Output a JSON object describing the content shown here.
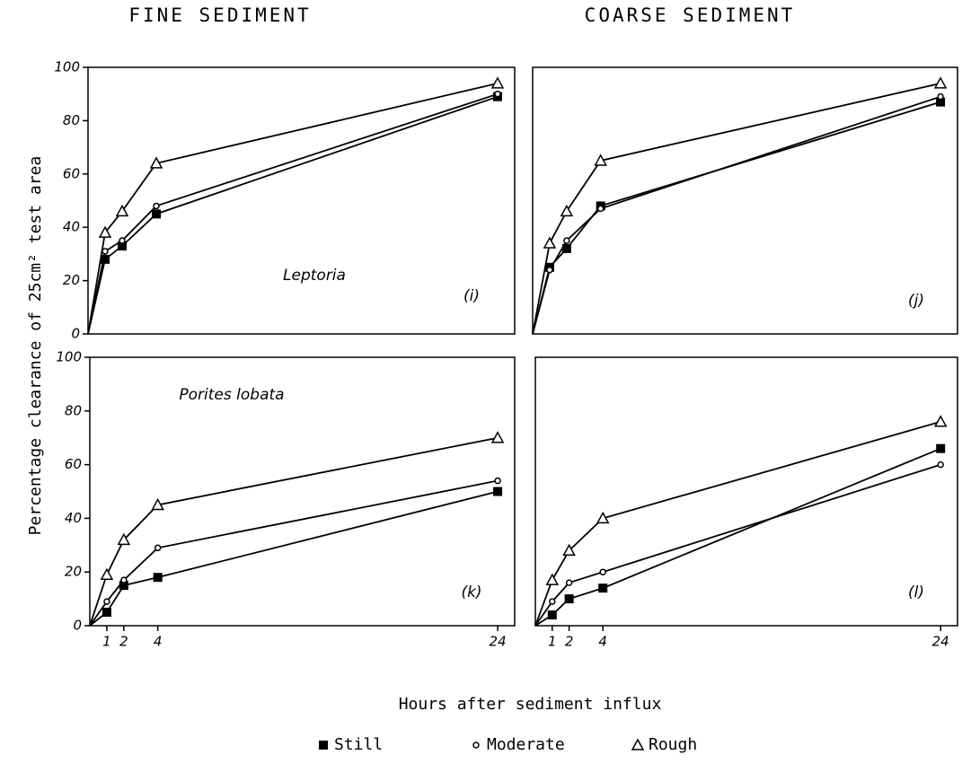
{
  "figure": {
    "column_titles": [
      "FINE SEDIMENT",
      "COARSE SEDIMENT"
    ],
    "ylabel": "Percentage clearance of 25cm² test area",
    "xlabel": "Hours after sediment influx"
  },
  "chart_data": [
    {
      "type": "line",
      "x": [
        0,
        1,
        2,
        4,
        24
      ],
      "xlim": [
        0,
        25
      ],
      "ylim": [
        0,
        100
      ],
      "yticks": [
        0,
        20,
        40,
        60,
        80,
        100
      ],
      "annotations": [
        "Leptoria",
        "(i)"
      ],
      "series": [
        {
          "name": "Still",
          "color": "#000000",
          "marker": "square",
          "values": [
            0,
            28,
            33,
            45,
            89
          ]
        },
        {
          "name": "Moderate",
          "color": "#000000",
          "marker": "circle",
          "values": [
            0,
            31,
            35,
            48,
            90
          ]
        },
        {
          "name": "Rough",
          "color": "#000000",
          "marker": "triangle",
          "values": [
            0,
            38,
            46,
            64,
            94
          ]
        }
      ]
    },
    {
      "type": "line",
      "x": [
        0,
        1,
        2,
        4,
        24
      ],
      "xlim": [
        0,
        25
      ],
      "ylim": [
        0,
        100
      ],
      "annotations": [
        "(j)"
      ],
      "series": [
        {
          "name": "Still",
          "color": "#000000",
          "marker": "square",
          "values": [
            0,
            25,
            32,
            48,
            87
          ]
        },
        {
          "name": "Moderate",
          "color": "#000000",
          "marker": "circle",
          "values": [
            0,
            24,
            35,
            47,
            89
          ]
        },
        {
          "name": "Rough",
          "color": "#000000",
          "marker": "triangle",
          "values": [
            0,
            34,
            46,
            65,
            94
          ]
        }
      ]
    },
    {
      "type": "line",
      "x": [
        0,
        1,
        2,
        4,
        24
      ],
      "xlim": [
        0,
        25
      ],
      "ylim": [
        0,
        100
      ],
      "yticks": [
        0,
        20,
        40,
        60,
        80,
        100
      ],
      "xticks": [
        1,
        2,
        4,
        24
      ],
      "annotations": [
        "Porites lobata",
        "(k)"
      ],
      "series": [
        {
          "name": "Still",
          "color": "#000000",
          "marker": "square",
          "values": [
            0,
            5,
            15,
            18,
            50
          ]
        },
        {
          "name": "Moderate",
          "color": "#000000",
          "marker": "circle",
          "values": [
            0,
            9,
            17,
            29,
            54
          ]
        },
        {
          "name": "Rough",
          "color": "#000000",
          "marker": "triangle",
          "values": [
            0,
            19,
            32,
            45,
            70
          ]
        }
      ]
    },
    {
      "type": "line",
      "x": [
        0,
        1,
        2,
        4,
        24
      ],
      "xlim": [
        0,
        25
      ],
      "ylim": [
        0,
        100
      ],
      "xticks": [
        1,
        2,
        4,
        24
      ],
      "annotations": [
        "(l)"
      ],
      "series": [
        {
          "name": "Still",
          "color": "#000000",
          "marker": "square",
          "values": [
            0,
            4,
            10,
            14,
            66
          ]
        },
        {
          "name": "Moderate",
          "color": "#000000",
          "marker": "circle",
          "values": [
            0,
            9,
            16,
            20,
            60
          ]
        },
        {
          "name": "Rough",
          "color": "#000000",
          "marker": "triangle",
          "values": [
            0,
            17,
            28,
            40,
            76
          ]
        }
      ]
    }
  ]
}
